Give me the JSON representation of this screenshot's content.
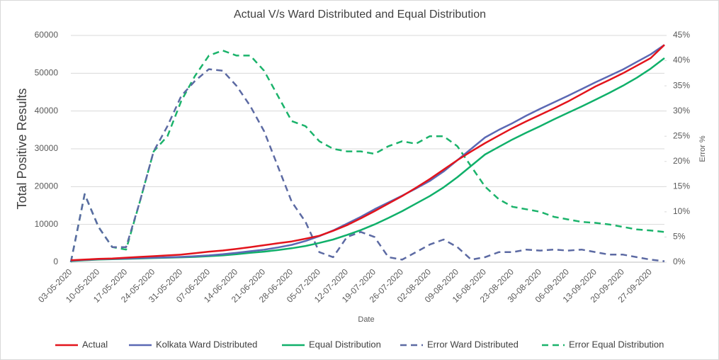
{
  "chart_data": {
    "type": "line",
    "title": "Actual V/s Ward Distributed and Equal Distribution",
    "x_label": "Date",
    "y_label": "Total Positive Results",
    "y2_label": "Error %",
    "categories": [
      "03-05-2020",
      null,
      "10-05-2020",
      null,
      "17-05-2020",
      null,
      "24-05-2020",
      null,
      "31-05-2020",
      null,
      "07-06-2020",
      null,
      "14-06-2020",
      null,
      "21-06-2020",
      null,
      "28-06-2020",
      null,
      "05-07-2020",
      null,
      "12-07-2020",
      null,
      "19-07-2020",
      null,
      "26-07-2020",
      null,
      "02-08-2020",
      null,
      "09-08-2020",
      null,
      "16-08-2020",
      null,
      "23-08-2020",
      null,
      "30-08-2020",
      null,
      "06-09-2020",
      null,
      "13-09-2020",
      null,
      "20-09-2020",
      null,
      "27-09-2020",
      null
    ],
    "ylim": [
      0,
      60000
    ],
    "yticks": [
      0,
      10000,
      20000,
      30000,
      40000,
      50000,
      60000
    ],
    "y2lim": [
      0,
      45
    ],
    "y2ticks": [
      {
        "value": 0,
        "label": "0%"
      },
      {
        "value": 5,
        "label": "5%"
      },
      {
        "value": 10,
        "label": "10%"
      },
      {
        "value": 15,
        "label": "15%"
      },
      {
        "value": 20,
        "label": "20%"
      },
      {
        "value": 25,
        "label": "25%"
      },
      {
        "value": 30,
        "label": "30%"
      },
      {
        "value": 35,
        "label": "35%"
      },
      {
        "value": 40,
        "label": "40%"
      },
      {
        "value": 45,
        "label": "45%"
      }
    ],
    "grid": true,
    "legend": "bottom",
    "series": [
      {
        "name": "Actual",
        "color": "#e3141c",
        "style": "solid",
        "values": [
          500,
          700,
          900,
          1000,
          1200,
          1400,
          1600,
          1800,
          2000,
          2400,
          2800,
          3100,
          3500,
          4000,
          4500,
          5000,
          5500,
          6200,
          7000,
          8300,
          9800,
          11600,
          13500,
          15500,
          17500,
          19700,
          22000,
          24500,
          27000,
          29300,
          31500,
          33500,
          35500,
          37300,
          39000,
          40700,
          42500,
          44500,
          46500,
          48200,
          50000,
          52000,
          54000,
          57500
        ]
      },
      {
        "name": "Kolkata Ward Distributed",
        "color": "#5b68b4",
        "style": "solid",
        "values": [
          400,
          600,
          800,
          900,
          1000,
          1100,
          1200,
          1300,
          1400,
          1600,
          1800,
          2100,
          2500,
          2900,
          3300,
          3900,
          4600,
          5600,
          6900,
          8400,
          10200,
          12000,
          14000,
          15800,
          17600,
          19500,
          21500,
          24000,
          27000,
          30000,
          33000,
          35000,
          36800,
          38800,
          40600,
          42300,
          44000,
          45800,
          47600,
          49300,
          51000,
          53000,
          55000,
          57500
        ]
      },
      {
        "name": "Equal Distribution",
        "color": "#10b06a",
        "style": "solid",
        "values": [
          300,
          500,
          700,
          800,
          900,
          1000,
          1100,
          1200,
          1300,
          1400,
          1600,
          1800,
          2100,
          2500,
          2800,
          3200,
          3700,
          4300,
          5100,
          6000,
          7200,
          8500,
          10000,
          11700,
          13500,
          15500,
          17500,
          19800,
          22500,
          25500,
          28500,
          30500,
          32500,
          34300,
          36000,
          37800,
          39500,
          41200,
          43000,
          44800,
          46700,
          48800,
          51200,
          54000
        ]
      },
      {
        "name": "Error Ward Distributed",
        "color": "#5c6aa3",
        "style": "dashed",
        "axis": "y2",
        "values": [
          0,
          13.5,
          7,
          3,
          3,
          12,
          22,
          27,
          33,
          36,
          38.3,
          38,
          35,
          31,
          26,
          19,
          12,
          8,
          2,
          1,
          5,
          6,
          5,
          1,
          0.5,
          2,
          3.5,
          4.5,
          3,
          0.5,
          1,
          2,
          2,
          2.5,
          2.3,
          2.5,
          2.3,
          2.5,
          2,
          1.5,
          1.5,
          1,
          0.5,
          0.2
        ]
      },
      {
        "name": "Error Equal Distribution",
        "color": "#1bb36b",
        "style": "dashed",
        "axis": "y2",
        "values": [
          0,
          13.5,
          7,
          3,
          2.5,
          12,
          22,
          25,
          32,
          37,
          41,
          42,
          41,
          41,
          38,
          33,
          28,
          27,
          24,
          22.5,
          22,
          22,
          21.5,
          23,
          24,
          23.5,
          25,
          25,
          23,
          19,
          15,
          12.5,
          11,
          10.5,
          10,
          9,
          8.5,
          8,
          7.8,
          7.5,
          7,
          6.5,
          6.3,
          6
        ]
      }
    ]
  }
}
